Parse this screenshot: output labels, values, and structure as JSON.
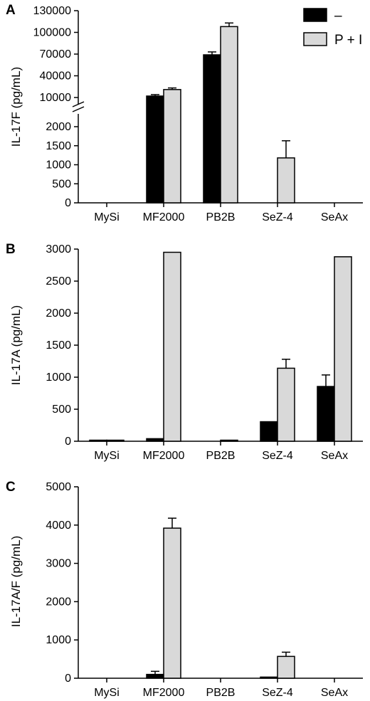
{
  "legend": [
    {
      "label": "–",
      "color": "#000000"
    },
    {
      "label": "P + I",
      "color": "#d9d9d9"
    }
  ],
  "chart_data": [
    {
      "type": "bar",
      "panel": "A",
      "ylabel": "IL-17F (pg/mL)",
      "categories": [
        "MySi",
        "MF2000",
        "PB2B",
        "SeZ-4",
        "SeAx"
      ],
      "broken_axis": true,
      "ylim_lower": [
        0,
        2000
      ],
      "ylim_upper": [
        10000,
        130000
      ],
      "yticks_lower": [
        0,
        500,
        1000,
        1500,
        2000
      ],
      "yticks_upper": [
        10000,
        40000,
        70000,
        100000,
        130000
      ],
      "series": [
        {
          "name": "–",
          "color": "#000000",
          "values": [
            0,
            12000,
            69000,
            0,
            0
          ],
          "errors": [
            0,
            2000,
            4000,
            0,
            0
          ]
        },
        {
          "name": "P + I",
          "color": "#d9d9d9",
          "values": [
            0,
            21000,
            108000,
            1180,
            0
          ],
          "errors": [
            0,
            2200,
            5000,
            450,
            0
          ]
        }
      ]
    },
    {
      "type": "bar",
      "panel": "B",
      "ylabel": "IL-17A (pg/mL)",
      "categories": [
        "MySi",
        "MF2000",
        "PB2B",
        "SeZ-4",
        "SeAx"
      ],
      "ylim": [
        0,
        3000
      ],
      "yticks": [
        0,
        500,
        1000,
        1500,
        2000,
        2500,
        3000
      ],
      "series": [
        {
          "name": "–",
          "color": "#000000",
          "values": [
            5,
            40,
            0,
            305,
            855
          ],
          "errors": [
            0,
            0,
            0,
            0,
            180
          ]
        },
        {
          "name": "P + I",
          "color": "#d9d9d9",
          "values": [
            15,
            2950,
            5,
            1140,
            2880
          ],
          "errors": [
            0,
            0,
            0,
            140,
            0
          ]
        }
      ]
    },
    {
      "type": "bar",
      "panel": "C",
      "ylabel": "IL-17A/F (pg/mL)",
      "categories": [
        "MySi",
        "MF2000",
        "PB2B",
        "SeZ-4",
        "SeAx"
      ],
      "ylim": [
        0,
        5000
      ],
      "yticks": [
        0,
        1000,
        2000,
        3000,
        4000,
        5000
      ],
      "series": [
        {
          "name": "–",
          "color": "#000000",
          "values": [
            0,
            100,
            0,
            30,
            0
          ],
          "errors": [
            0,
            80,
            0,
            0,
            0
          ]
        },
        {
          "name": "P + I",
          "color": "#d9d9d9",
          "values": [
            0,
            3920,
            0,
            570,
            0
          ],
          "errors": [
            0,
            260,
            0,
            110,
            0
          ]
        }
      ]
    }
  ]
}
